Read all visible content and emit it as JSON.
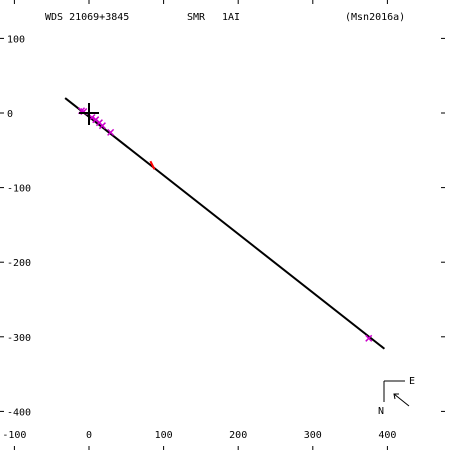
{
  "header": {
    "object_id": "WDS 21069+3845",
    "system_type": "SMR",
    "orbit_code": "1AI",
    "reference": "(Msn2016a)"
  },
  "colors": {
    "background": "#ffffff",
    "axes": "#000000",
    "orbit_line": "#000000",
    "observation_marks": "#cc00cc",
    "residual_marks": "#ff0000"
  },
  "compass": {
    "east_label": "E",
    "north_label": "N"
  },
  "chart_data": {
    "type": "scatter",
    "xlim": [
      -110,
      480
    ],
    "ylim": [
      -430,
      150
    ],
    "grid": false,
    "x_ticks": [
      -100,
      0,
      100,
      200,
      300,
      400
    ],
    "y_ticks": [
      100,
      0,
      -100,
      -200,
      -300,
      -400
    ],
    "primary_star": [
      0,
      0
    ],
    "orbit_segment": [
      [
        -32,
        20
      ],
      [
        396,
        -316
      ]
    ],
    "observations": [
      {
        "x": -10,
        "y": 3,
        "kind": "obs"
      },
      {
        "x": -7,
        "y": 2,
        "kind": "obs"
      },
      {
        "x": 4,
        "y": -6,
        "kind": "obs"
      },
      {
        "x": 9,
        "y": -9,
        "kind": "obs"
      },
      {
        "x": 14,
        "y": -13,
        "kind": "obs"
      },
      {
        "x": 18,
        "y": -17,
        "kind": "obs"
      },
      {
        "x": 29,
        "y": -26,
        "kind": "obs"
      },
      {
        "x": 85,
        "y": -70,
        "kind": "resid"
      },
      {
        "x": 375,
        "y": -302,
        "kind": "obs"
      }
    ]
  }
}
